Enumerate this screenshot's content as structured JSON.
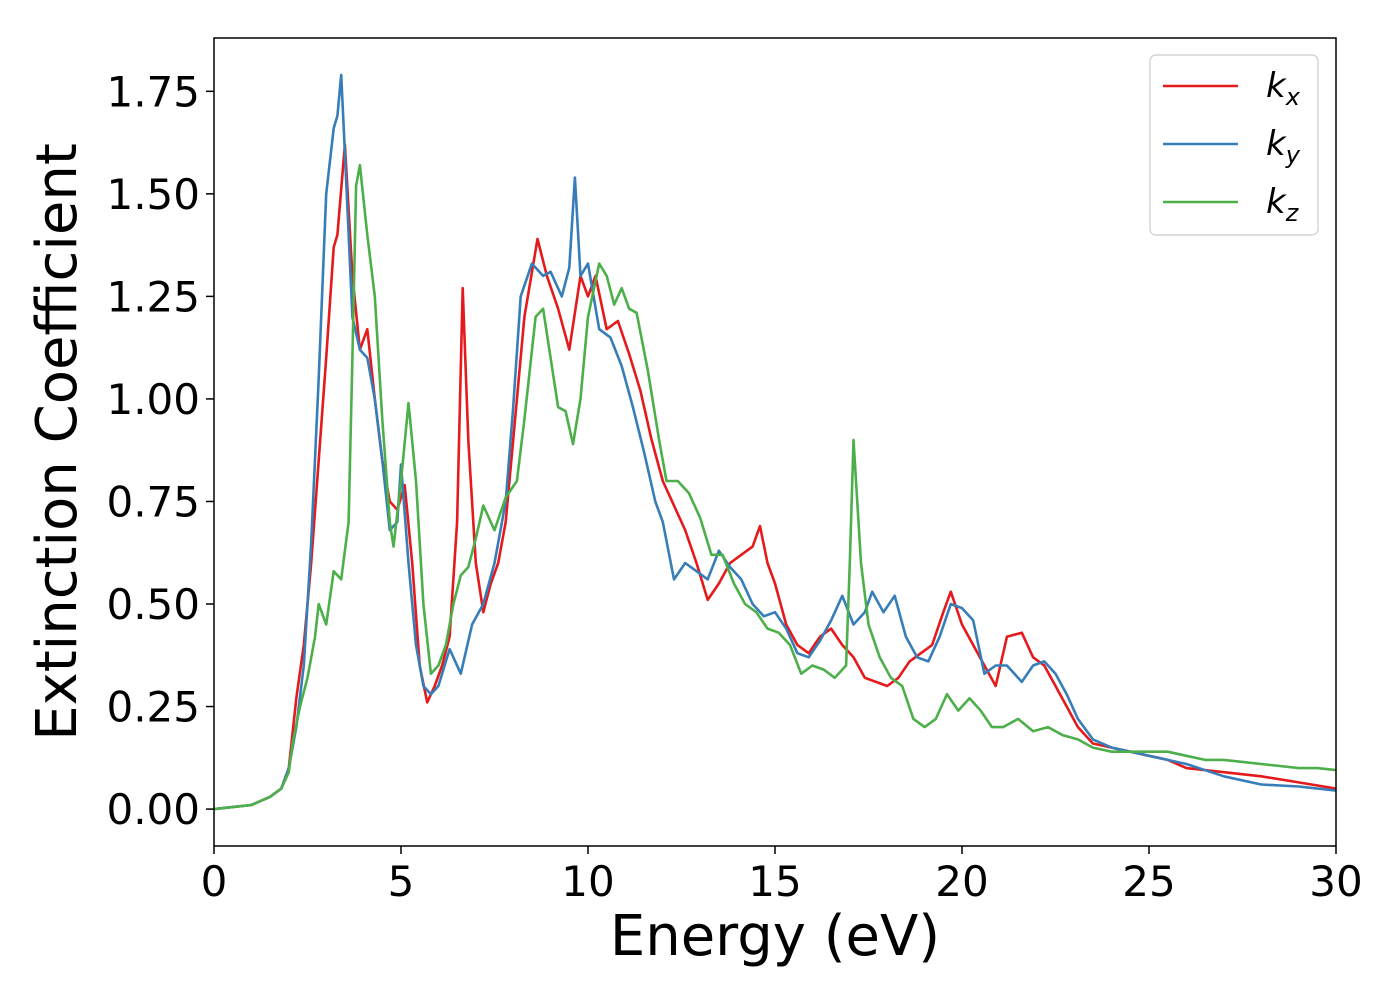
{
  "chart_data": {
    "type": "line",
    "xlabel": "Energy (eV)",
    "ylabel": "Extinction Coefficient",
    "xlim": [
      0,
      30
    ],
    "ylim": [
      -0.09,
      1.88
    ],
    "xticks": [
      0,
      5,
      10,
      15,
      20,
      25,
      30
    ],
    "xtick_labels": [
      "0",
      "5",
      "10",
      "15",
      "20",
      "25",
      "30"
    ],
    "yticks": [
      0.0,
      0.25,
      0.5,
      0.75,
      1.0,
      1.25,
      1.5,
      1.75
    ],
    "ytick_labels": [
      "0.00",
      "0.25",
      "0.50",
      "0.75",
      "1.00",
      "1.25",
      "1.50",
      "1.75"
    ],
    "grid": false,
    "legend_position": "top-right",
    "series": [
      {
        "name": "k_x",
        "label_base": "k",
        "label_sub": "x",
        "color": "#e41a1c",
        "points": [
          [
            0,
            0.0
          ],
          [
            1,
            0.01
          ],
          [
            1.5,
            0.03
          ],
          [
            1.8,
            0.05
          ],
          [
            2.0,
            0.1
          ],
          [
            2.2,
            0.27
          ],
          [
            2.4,
            0.4
          ],
          [
            2.6,
            0.6
          ],
          [
            2.8,
            0.85
          ],
          [
            3.0,
            1.1
          ],
          [
            3.2,
            1.37
          ],
          [
            3.3,
            1.4
          ],
          [
            3.5,
            1.62
          ],
          [
            3.7,
            1.3
          ],
          [
            3.9,
            1.12
          ],
          [
            4.1,
            1.17
          ],
          [
            4.3,
            1.0
          ],
          [
            4.5,
            0.85
          ],
          [
            4.7,
            0.75
          ],
          [
            4.9,
            0.73
          ],
          [
            5.1,
            0.79
          ],
          [
            5.3,
            0.6
          ],
          [
            5.5,
            0.35
          ],
          [
            5.7,
            0.26
          ],
          [
            5.9,
            0.3
          ],
          [
            6.1,
            0.35
          ],
          [
            6.3,
            0.42
          ],
          [
            6.5,
            0.7
          ],
          [
            6.65,
            1.27
          ],
          [
            6.8,
            0.9
          ],
          [
            7.0,
            0.6
          ],
          [
            7.2,
            0.48
          ],
          [
            7.4,
            0.55
          ],
          [
            7.6,
            0.6
          ],
          [
            7.8,
            0.7
          ],
          [
            8.0,
            0.9
          ],
          [
            8.3,
            1.2
          ],
          [
            8.65,
            1.39
          ],
          [
            8.9,
            1.3
          ],
          [
            9.2,
            1.22
          ],
          [
            9.5,
            1.12
          ],
          [
            9.8,
            1.3
          ],
          [
            10.0,
            1.25
          ],
          [
            10.2,
            1.3
          ],
          [
            10.5,
            1.17
          ],
          [
            10.8,
            1.19
          ],
          [
            11.1,
            1.11
          ],
          [
            11.4,
            1.02
          ],
          [
            11.7,
            0.9
          ],
          [
            12.0,
            0.8
          ],
          [
            12.3,
            0.74
          ],
          [
            12.6,
            0.68
          ],
          [
            12.9,
            0.6
          ],
          [
            13.2,
            0.51
          ],
          [
            13.5,
            0.55
          ],
          [
            13.8,
            0.6
          ],
          [
            14.1,
            0.62
          ],
          [
            14.4,
            0.64
          ],
          [
            14.6,
            0.69
          ],
          [
            14.8,
            0.6
          ],
          [
            15.0,
            0.55
          ],
          [
            15.3,
            0.45
          ],
          [
            15.6,
            0.4
          ],
          [
            15.9,
            0.38
          ],
          [
            16.2,
            0.42
          ],
          [
            16.5,
            0.44
          ],
          [
            16.8,
            0.4
          ],
          [
            17.1,
            0.37
          ],
          [
            17.4,
            0.32
          ],
          [
            17.7,
            0.31
          ],
          [
            18.0,
            0.3
          ],
          [
            18.3,
            0.32
          ],
          [
            18.6,
            0.36
          ],
          [
            18.9,
            0.38
          ],
          [
            19.2,
            0.4
          ],
          [
            19.5,
            0.48
          ],
          [
            19.7,
            0.53
          ],
          [
            20.0,
            0.45
          ],
          [
            20.3,
            0.4
          ],
          [
            20.6,
            0.35
          ],
          [
            20.9,
            0.3
          ],
          [
            21.2,
            0.42
          ],
          [
            21.6,
            0.43
          ],
          [
            21.9,
            0.37
          ],
          [
            22.2,
            0.35
          ],
          [
            22.5,
            0.3
          ],
          [
            22.8,
            0.25
          ],
          [
            23.1,
            0.2
          ],
          [
            23.5,
            0.16
          ],
          [
            24.0,
            0.15
          ],
          [
            24.5,
            0.14
          ],
          [
            25.0,
            0.13
          ],
          [
            25.5,
            0.12
          ],
          [
            26.0,
            0.1
          ],
          [
            27.0,
            0.09
          ],
          [
            28.0,
            0.08
          ],
          [
            29.0,
            0.065
          ],
          [
            30.0,
            0.05
          ]
        ]
      },
      {
        "name": "k_y",
        "label_base": "k",
        "label_sub": "y",
        "color": "#377eb8",
        "points": [
          [
            0,
            0.0
          ],
          [
            1,
            0.01
          ],
          [
            1.5,
            0.03
          ],
          [
            1.8,
            0.05
          ],
          [
            2.0,
            0.1
          ],
          [
            2.2,
            0.2
          ],
          [
            2.4,
            0.35
          ],
          [
            2.6,
            0.65
          ],
          [
            2.8,
            1.05
          ],
          [
            3.0,
            1.5
          ],
          [
            3.2,
            1.66
          ],
          [
            3.3,
            1.69
          ],
          [
            3.4,
            1.79
          ],
          [
            3.5,
            1.6
          ],
          [
            3.7,
            1.2
          ],
          [
            3.9,
            1.12
          ],
          [
            4.1,
            1.1
          ],
          [
            4.3,
            1.0
          ],
          [
            4.5,
            0.85
          ],
          [
            4.7,
            0.68
          ],
          [
            4.9,
            0.7
          ],
          [
            5.0,
            0.84
          ],
          [
            5.2,
            0.6
          ],
          [
            5.4,
            0.4
          ],
          [
            5.6,
            0.3
          ],
          [
            5.8,
            0.28
          ],
          [
            6.0,
            0.3
          ],
          [
            6.3,
            0.39
          ],
          [
            6.6,
            0.33
          ],
          [
            6.9,
            0.45
          ],
          [
            7.2,
            0.5
          ],
          [
            7.5,
            0.6
          ],
          [
            7.8,
            0.75
          ],
          [
            8.0,
            0.98
          ],
          [
            8.2,
            1.25
          ],
          [
            8.5,
            1.33
          ],
          [
            8.8,
            1.3
          ],
          [
            9.0,
            1.31
          ],
          [
            9.3,
            1.25
          ],
          [
            9.5,
            1.32
          ],
          [
            9.65,
            1.54
          ],
          [
            9.8,
            1.3
          ],
          [
            10.0,
            1.33
          ],
          [
            10.3,
            1.17
          ],
          [
            10.6,
            1.15
          ],
          [
            10.9,
            1.08
          ],
          [
            11.2,
            0.98
          ],
          [
            11.5,
            0.87
          ],
          [
            11.8,
            0.75
          ],
          [
            12.0,
            0.7
          ],
          [
            12.3,
            0.56
          ],
          [
            12.6,
            0.6
          ],
          [
            12.9,
            0.58
          ],
          [
            13.2,
            0.56
          ],
          [
            13.5,
            0.63
          ],
          [
            13.8,
            0.59
          ],
          [
            14.1,
            0.56
          ],
          [
            14.4,
            0.5
          ],
          [
            14.7,
            0.47
          ],
          [
            15.0,
            0.48
          ],
          [
            15.3,
            0.44
          ],
          [
            15.6,
            0.38
          ],
          [
            15.9,
            0.37
          ],
          [
            16.2,
            0.41
          ],
          [
            16.5,
            0.46
          ],
          [
            16.8,
            0.52
          ],
          [
            17.1,
            0.45
          ],
          [
            17.4,
            0.48
          ],
          [
            17.6,
            0.53
          ],
          [
            17.9,
            0.48
          ],
          [
            18.2,
            0.52
          ],
          [
            18.5,
            0.42
          ],
          [
            18.8,
            0.37
          ],
          [
            19.1,
            0.36
          ],
          [
            19.4,
            0.42
          ],
          [
            19.7,
            0.5
          ],
          [
            20.0,
            0.49
          ],
          [
            20.3,
            0.46
          ],
          [
            20.6,
            0.33
          ],
          [
            20.9,
            0.35
          ],
          [
            21.2,
            0.35
          ],
          [
            21.6,
            0.31
          ],
          [
            21.9,
            0.35
          ],
          [
            22.2,
            0.36
          ],
          [
            22.5,
            0.33
          ],
          [
            22.8,
            0.28
          ],
          [
            23.1,
            0.22
          ],
          [
            23.5,
            0.17
          ],
          [
            24.0,
            0.15
          ],
          [
            24.5,
            0.14
          ],
          [
            25.0,
            0.13
          ],
          [
            25.5,
            0.12
          ],
          [
            26.0,
            0.11
          ],
          [
            27.0,
            0.08
          ],
          [
            28.0,
            0.06
          ],
          [
            29.0,
            0.055
          ],
          [
            30.0,
            0.045
          ]
        ]
      },
      {
        "name": "k_z",
        "label_base": "k",
        "label_sub": "z",
        "color": "#4daf4a",
        "points": [
          [
            0,
            0.0
          ],
          [
            1,
            0.01
          ],
          [
            1.5,
            0.03
          ],
          [
            1.8,
            0.05
          ],
          [
            2.0,
            0.09
          ],
          [
            2.1,
            0.16
          ],
          [
            2.3,
            0.25
          ],
          [
            2.5,
            0.32
          ],
          [
            2.7,
            0.42
          ],
          [
            2.8,
            0.5
          ],
          [
            3.0,
            0.45
          ],
          [
            3.2,
            0.58
          ],
          [
            3.4,
            0.56
          ],
          [
            3.6,
            0.7
          ],
          [
            3.7,
            1.1
          ],
          [
            3.8,
            1.52
          ],
          [
            3.9,
            1.57
          ],
          [
            4.1,
            1.4
          ],
          [
            4.3,
            1.25
          ],
          [
            4.5,
            0.95
          ],
          [
            4.7,
            0.7
          ],
          [
            4.8,
            0.64
          ],
          [
            5.0,
            0.8
          ],
          [
            5.2,
            0.99
          ],
          [
            5.4,
            0.8
          ],
          [
            5.6,
            0.5
          ],
          [
            5.8,
            0.33
          ],
          [
            6.0,
            0.35
          ],
          [
            6.2,
            0.4
          ],
          [
            6.4,
            0.5
          ],
          [
            6.6,
            0.57
          ],
          [
            6.8,
            0.59
          ],
          [
            7.0,
            0.66
          ],
          [
            7.2,
            0.74
          ],
          [
            7.5,
            0.68
          ],
          [
            7.8,
            0.76
          ],
          [
            8.1,
            0.8
          ],
          [
            8.3,
            0.95
          ],
          [
            8.6,
            1.2
          ],
          [
            8.8,
            1.22
          ],
          [
            9.0,
            1.1
          ],
          [
            9.2,
            0.98
          ],
          [
            9.4,
            0.97
          ],
          [
            9.6,
            0.89
          ],
          [
            9.8,
            1.0
          ],
          [
            10.0,
            1.2
          ],
          [
            10.3,
            1.33
          ],
          [
            10.5,
            1.3
          ],
          [
            10.7,
            1.23
          ],
          [
            10.9,
            1.27
          ],
          [
            11.1,
            1.22
          ],
          [
            11.3,
            1.21
          ],
          [
            11.6,
            1.07
          ],
          [
            11.9,
            0.9
          ],
          [
            12.1,
            0.8
          ],
          [
            12.4,
            0.8
          ],
          [
            12.7,
            0.77
          ],
          [
            13.0,
            0.71
          ],
          [
            13.3,
            0.62
          ],
          [
            13.6,
            0.62
          ],
          [
            13.9,
            0.55
          ],
          [
            14.2,
            0.5
          ],
          [
            14.5,
            0.48
          ],
          [
            14.8,
            0.44
          ],
          [
            15.1,
            0.43
          ],
          [
            15.4,
            0.4
          ],
          [
            15.7,
            0.33
          ],
          [
            16.0,
            0.35
          ],
          [
            16.3,
            0.34
          ],
          [
            16.6,
            0.32
          ],
          [
            16.9,
            0.35
          ],
          [
            17.0,
            0.6
          ],
          [
            17.1,
            0.9
          ],
          [
            17.3,
            0.6
          ],
          [
            17.5,
            0.45
          ],
          [
            17.8,
            0.37
          ],
          [
            18.1,
            0.32
          ],
          [
            18.4,
            0.3
          ],
          [
            18.7,
            0.22
          ],
          [
            19.0,
            0.2
          ],
          [
            19.3,
            0.22
          ],
          [
            19.6,
            0.28
          ],
          [
            19.9,
            0.24
          ],
          [
            20.2,
            0.27
          ],
          [
            20.5,
            0.24
          ],
          [
            20.8,
            0.2
          ],
          [
            21.1,
            0.2
          ],
          [
            21.5,
            0.22
          ],
          [
            21.9,
            0.19
          ],
          [
            22.3,
            0.2
          ],
          [
            22.7,
            0.18
          ],
          [
            23.1,
            0.17
          ],
          [
            23.5,
            0.15
          ],
          [
            24.0,
            0.14
          ],
          [
            24.5,
            0.14
          ],
          [
            25.0,
            0.14
          ],
          [
            25.5,
            0.14
          ],
          [
            26.0,
            0.13
          ],
          [
            26.5,
            0.12
          ],
          [
            27.0,
            0.12
          ],
          [
            27.5,
            0.115
          ],
          [
            28.0,
            0.11
          ],
          [
            28.5,
            0.105
          ],
          [
            29.0,
            0.1
          ],
          [
            29.5,
            0.1
          ],
          [
            30.0,
            0.095
          ]
        ]
      }
    ]
  }
}
